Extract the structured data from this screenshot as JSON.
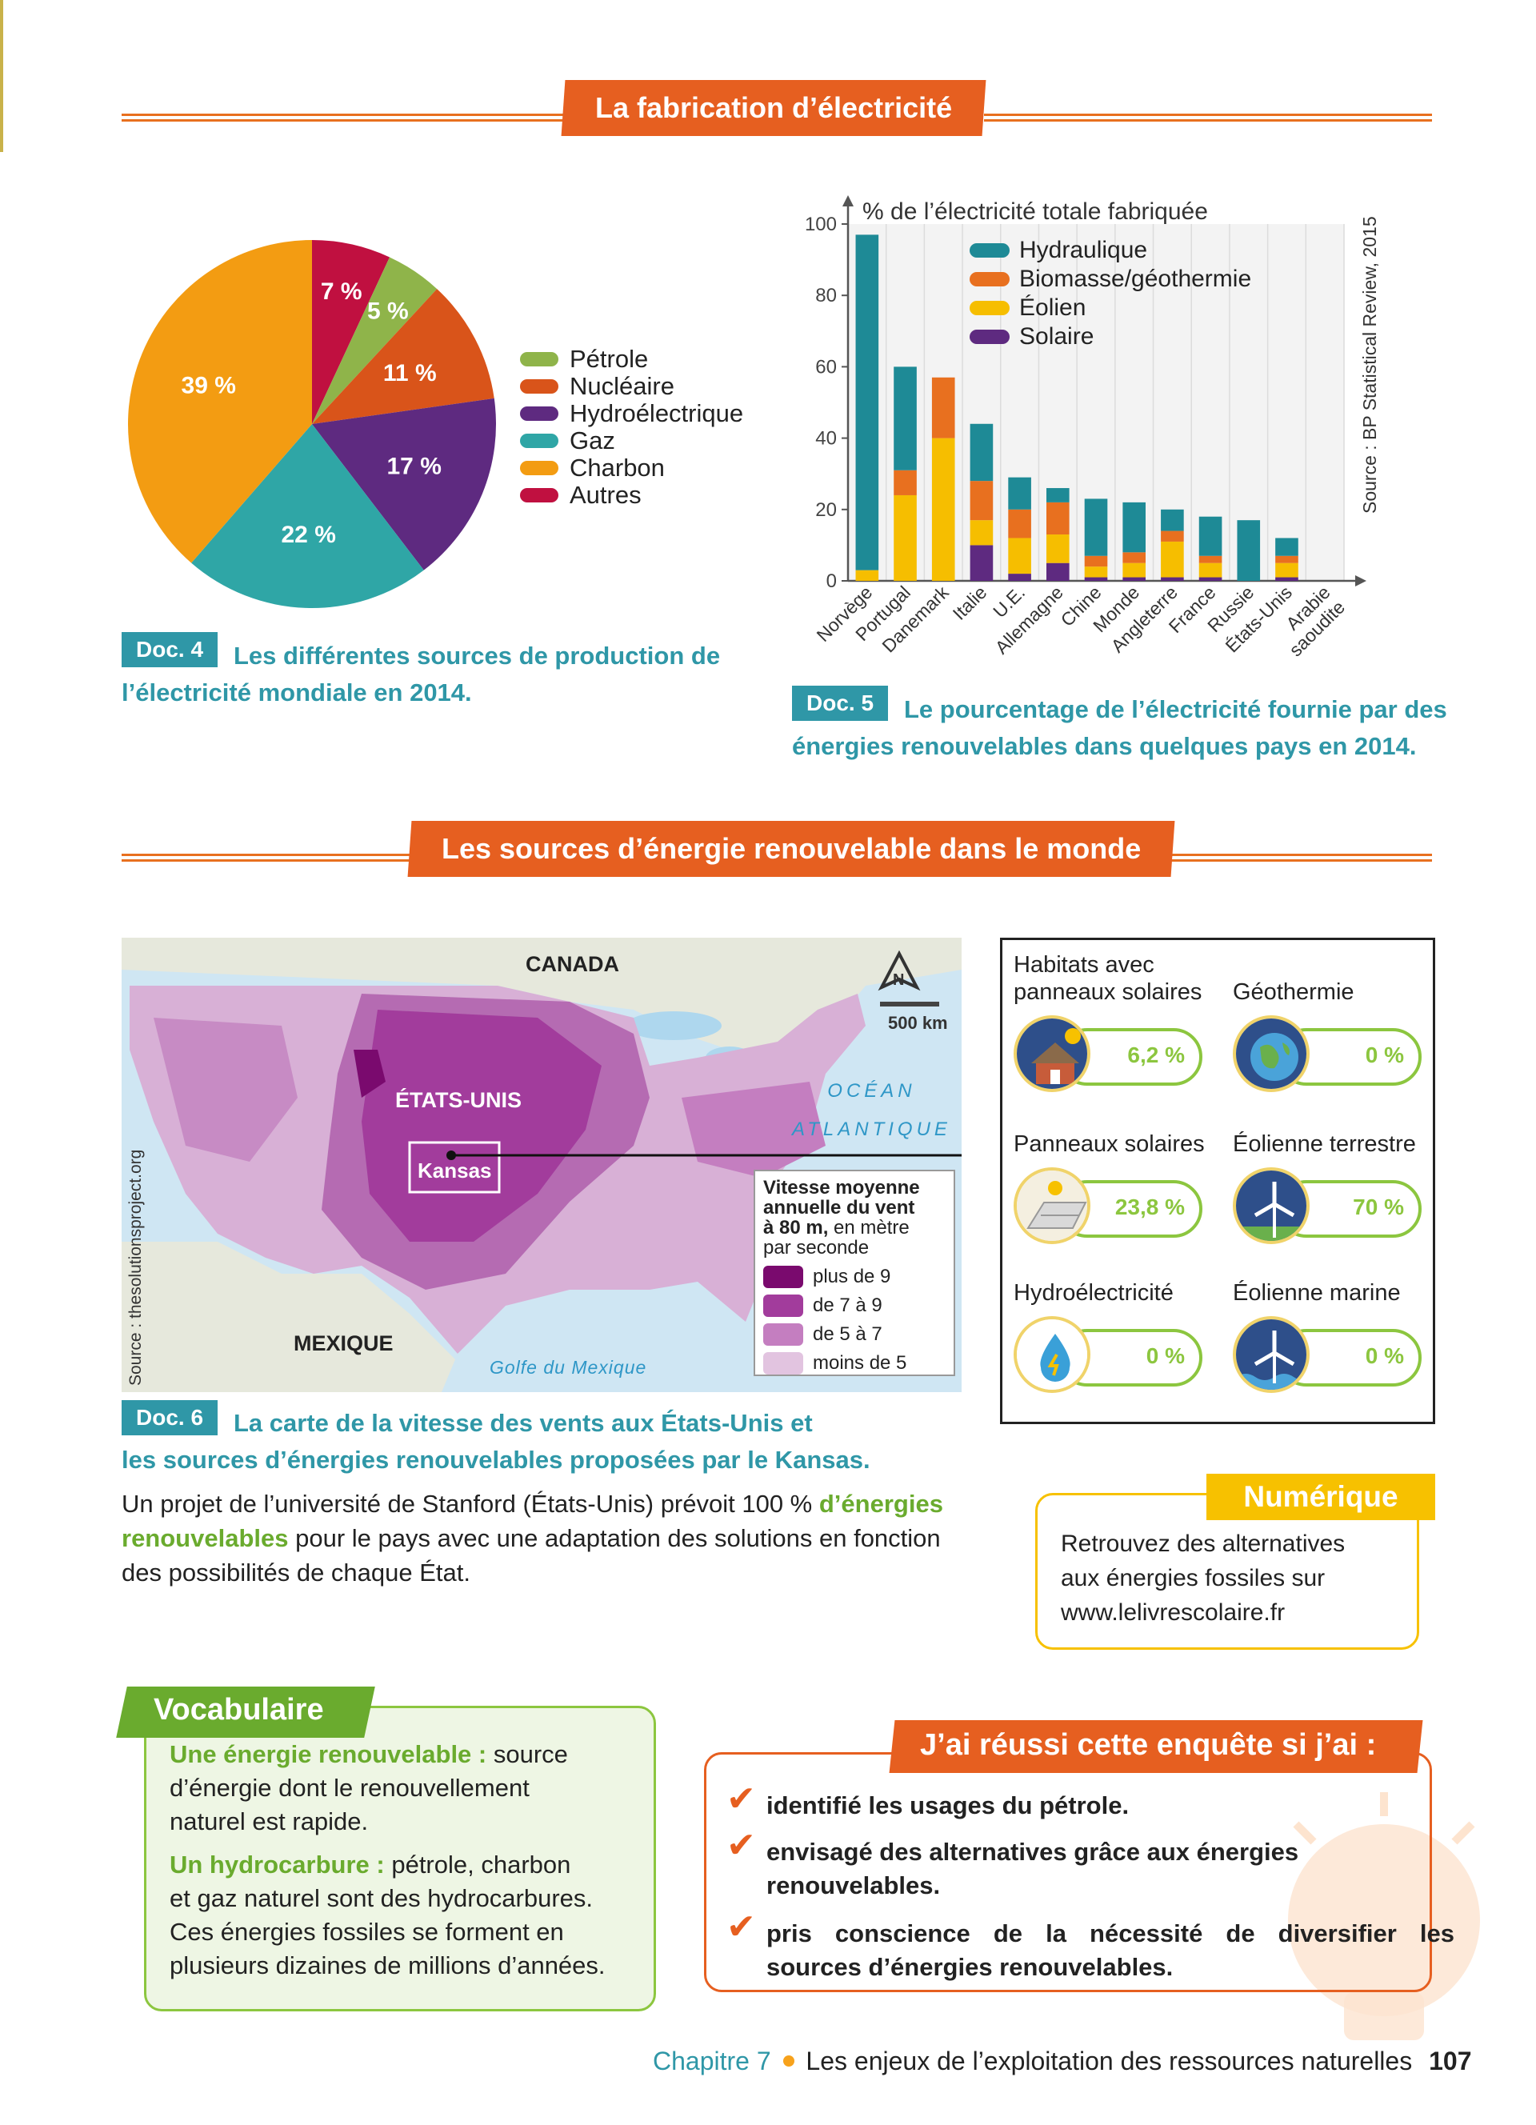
{
  "section1": {
    "title": "La fabrication d’électricité"
  },
  "pie": {
    "slices": [
      {
        "name": "Autres",
        "value": 7,
        "label": "7 %",
        "color": "#c01040"
      },
      {
        "name": "Pétrole",
        "value": 5,
        "label": "5 %",
        "color": "#8fb44a"
      },
      {
        "name": "Nucléaire",
        "value": 11,
        "label": "11 %",
        "color": "#d9541a"
      },
      {
        "name": "Hydroélectrique",
        "value": 17,
        "label": "17 %",
        "color": "#5e2a80"
      },
      {
        "name": "Gaz",
        "value": 22,
        "label": "22 %",
        "color": "#2fa6a6"
      },
      {
        "name": "Charbon",
        "value": 39,
        "label": "39 %",
        "color": "#f39c12"
      }
    ],
    "legend": [
      {
        "label": "Pétrole",
        "color": "#8fb44a"
      },
      {
        "label": "Nucléaire",
        "color": "#d9541a"
      },
      {
        "label": "Hydroélectrique",
        "color": "#5e2a80"
      },
      {
        "label": "Gaz",
        "color": "#2fa6a6"
      },
      {
        "label": "Charbon",
        "color": "#f39c12"
      },
      {
        "label": "Autres",
        "color": "#c01040"
      }
    ]
  },
  "doc4": {
    "badge": "Doc. 4",
    "caption_line1": "Les différentes sources de production de",
    "caption_line2": "l’électricité mondiale en 2014."
  },
  "chart_data": {
    "type": "bar",
    "stacked": true,
    "title": "% de l’électricité totale fabriquée",
    "source": "Source : BP Statistical Review, 2015",
    "ylim": [
      0,
      100
    ],
    "yticks": [
      0,
      20,
      40,
      60,
      80,
      100
    ],
    "categories": [
      "Norvège",
      "Portugal",
      "Danemark",
      "Italie",
      "U.E.",
      "Allemagne",
      "Chine",
      "Monde",
      "Angleterre",
      "France",
      "Russie",
      "États-Unis",
      "Arabie saoudite"
    ],
    "series": [
      {
        "name": "Solaire",
        "color": "#5e2a80",
        "values": [
          0,
          0,
          0,
          10,
          2,
          5,
          1,
          1,
          1,
          1,
          0,
          1,
          0
        ]
      },
      {
        "name": "Éolien",
        "color": "#f6be00",
        "values": [
          3,
          24,
          40,
          7,
          10,
          8,
          3,
          4,
          10,
          4,
          0,
          4,
          0
        ]
      },
      {
        "name": "Biomasse/géothermie",
        "color": "#e8701f",
        "values": [
          0,
          7,
          17,
          11,
          8,
          9,
          3,
          3,
          3,
          2,
          0,
          2,
          0
        ]
      },
      {
        "name": "Hydraulique",
        "color": "#1e8a96",
        "values": [
          94,
          29,
          0,
          16,
          9,
          4,
          16,
          14,
          6,
          11,
          17,
          5,
          0
        ]
      }
    ],
    "legend": [
      "Hydraulique",
      "Biomasse/géothermie",
      "Éolien",
      "Solaire"
    ]
  },
  "doc5": {
    "badge": "Doc. 5",
    "caption_line1": "Le pourcentage de l’électricité fournie par des",
    "caption_line2": "énergies renouvelables dans quelques pays en 2014."
  },
  "section2": {
    "title": "Les sources d’énergie renouvelable dans le monde"
  },
  "map": {
    "canada": "CANADA",
    "usa": "ÉTATS-UNIS",
    "kansas": "Kansas",
    "mexico": "MEXIQUE",
    "ocean_line1": "OCÉAN",
    "ocean_line2": "ATLANTIQUE",
    "gulf": "Golfe du Mexique",
    "north": "N",
    "scale": "500 km",
    "source": "Source : thesolutionsproject.org",
    "legend_title_line1": "Vitesse moyenne",
    "legend_title_line2": "annuelle du vent",
    "legend_title_line3_bold": "à 80 m,",
    "legend_title_line3_rest": " en mètre",
    "legend_title_line4": "par seconde",
    "legend": [
      {
        "label": "plus de 9",
        "color": "#7a0a6e"
      },
      {
        "label": "de 7 à 9",
        "color": "#a23c9c"
      },
      {
        "label": "de 5 à 7",
        "color": "#c47ec0"
      },
      {
        "label": "moins de 5",
        "color": "#e2c4e0"
      }
    ]
  },
  "energies": [
    {
      "line1": "Habitats avec",
      "line2": "panneaux solaires",
      "value": "6,2 %",
      "icon": "house-solar-icon"
    },
    {
      "line1": "",
      "line2": "Géothermie",
      "value": "0 %",
      "icon": "earth-icon"
    },
    {
      "line1": "",
      "line2": "Panneaux solaires",
      "value": "23,8 %",
      "icon": "solar-panel-icon"
    },
    {
      "line1": "",
      "line2": "Éolienne terrestre",
      "value": "70 %",
      "icon": "wind-turbine-icon"
    },
    {
      "line1": "",
      "line2": "Hydroélectricité",
      "value": "0 %",
      "icon": "water-drop-icon"
    },
    {
      "line1": "",
      "line2": "Éolienne marine",
      "value": "0 %",
      "icon": "offshore-wind-icon"
    }
  ],
  "doc6": {
    "badge": "Doc. 6",
    "caption_line1": "La carte de la vitesse des vents aux États-Unis et",
    "caption_line2": "les sources d’énergies renouvelables proposées par le Kansas."
  },
  "paragraph": {
    "p1": "Un projet de l’université de Stanford (États-Unis) prévoit 100 % ",
    "hl1": "d’énergies",
    "hl2": "renouvelables",
    "p2": " pour le pays avec une adaptation des solutions en fonction",
    "p3": "des possibilités de chaque État."
  },
  "numerique": {
    "title": "Numérique",
    "line1": "Retrouvez des alternatives",
    "line2": "aux énergies fossiles sur",
    "line3": "www.lelivrescolaire.fr"
  },
  "vocab": {
    "title": "Vocabulaire",
    "term1": "Une énergie renouvelable :",
    "def1a": " source",
    "def1b": "d’énergie dont le renouvellement",
    "def1c": "naturel est rapide.",
    "term2": "Un hydrocarbure :",
    "def2a": " pétrole, charbon",
    "def2b": "et gaz naturel sont des hydrocarbures.",
    "def2c": "Ces énergies fossiles se forment en",
    "def2d": "plusieurs dizaines de millions d’années."
  },
  "objectives": {
    "title": "J’ai réussi cette enquête si j’ai :",
    "check": "✔",
    "items": [
      {
        "line1": "identifié les usages du pétrole.",
        "line2": ""
      },
      {
        "line1": "envisagé des alternatives grâce aux énergies",
        "line2": "renouvelables."
      },
      {
        "line1": "pris conscience de la nécessité de diversifier les",
        "line2": "sources d’énergies renouvelables."
      }
    ]
  },
  "footer": {
    "chapter": "Chapitre 7",
    "title": "Les enjeux de l’exploitation des ressources naturelles",
    "page": "107"
  }
}
